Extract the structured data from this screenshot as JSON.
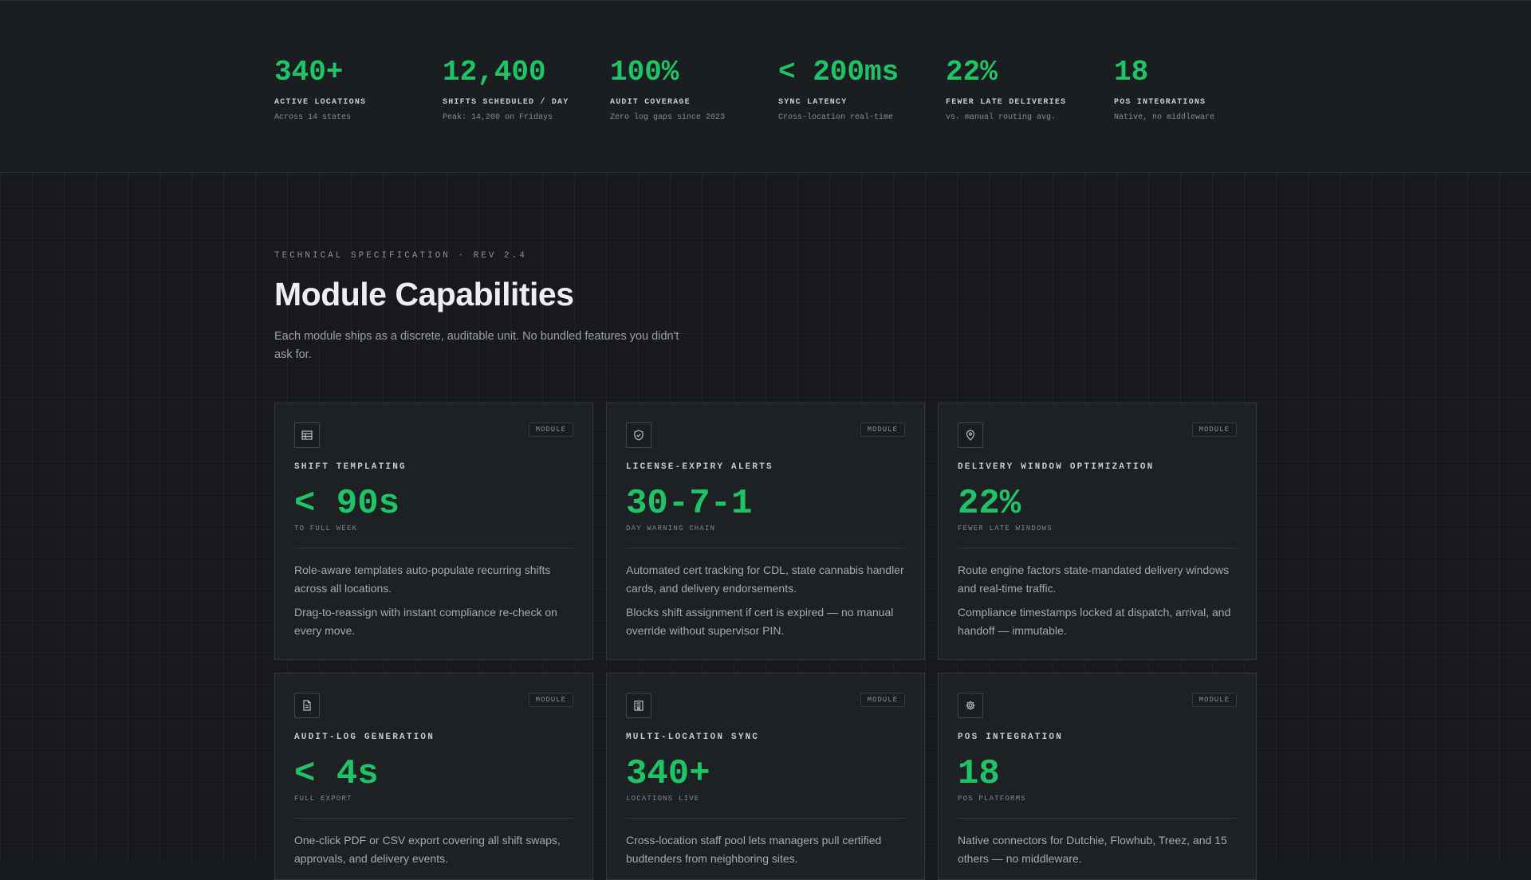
{
  "stats": [
    {
      "value": "340+",
      "label": "ACTIVE LOCATIONS",
      "sub": "Across 14 states"
    },
    {
      "value": "12,400",
      "label": "SHIFTS SCHEDULED / DAY",
      "sub": "Peak: 14,200 on Fridays"
    },
    {
      "value": "100%",
      "label": "AUDIT COVERAGE",
      "sub": "Zero log gaps since 2023"
    },
    {
      "value": "< 200ms",
      "label": "SYNC LATENCY",
      "sub": "Cross-location real-time"
    },
    {
      "value": "22%",
      "label": "FEWER LATE DELIVERIES",
      "sub": "vs. manual routing avg."
    },
    {
      "value": "18",
      "label": "POS INTEGRATIONS",
      "sub": "Native, no middleware"
    }
  ],
  "section": {
    "eyebrow": "TECHNICAL SPECIFICATION · REV 2.4",
    "title": "Module Capabilities",
    "lead": "Each module ships as a discrete, auditable unit. No bundled features you didn't ask for."
  },
  "modules": [
    {
      "icon": "calendar-table-icon",
      "tag": "MODULE",
      "name": "SHIFT TEMPLATING",
      "metric": "< 90s",
      "metric_unit": "TO FULL WEEK",
      "body1": "Role-aware templates auto-populate recurring shifts across all locations.",
      "body2": "Drag-to-reassign with instant compliance re-check on every move."
    },
    {
      "icon": "shield-check-icon",
      "tag": "MODULE",
      "name": "LICENSE-EXPIRY ALERTS",
      "metric": "30-7-1",
      "metric_unit": "DAY WARNING CHAIN",
      "body1": "Automated cert tracking for CDL, state cannabis handler cards, and delivery endorsements.",
      "body2": "Blocks shift assignment if cert is expired — no manual override without supervisor PIN."
    },
    {
      "icon": "map-pin-icon",
      "tag": "MODULE",
      "name": "DELIVERY WINDOW OPTIMIZATION",
      "metric": "22%",
      "metric_unit": "FEWER LATE WINDOWS",
      "body1": "Route engine factors state-mandated delivery windows and real-time traffic.",
      "body2": "Compliance timestamps locked at dispatch, arrival, and handoff — immutable."
    },
    {
      "icon": "document-icon",
      "tag": "MODULE",
      "name": "AUDIT-LOG GENERATION",
      "metric": "< 4s",
      "metric_unit": "FULL EXPORT",
      "body1": "One-click PDF or CSV export covering all shift swaps, approvals, and delivery events.",
      "body2": ""
    },
    {
      "icon": "building-icon",
      "tag": "MODULE",
      "name": "MULTI-LOCATION SYNC",
      "metric": "340+",
      "metric_unit": "LOCATIONS LIVE",
      "body1": "Cross-location staff pool lets managers pull certified budtenders from neighboring sites.",
      "body2": ""
    },
    {
      "icon": "gear-icon",
      "tag": "MODULE",
      "name": "POS INTEGRATION",
      "metric": "18",
      "metric_unit": "POS PLATFORMS",
      "body1": "Native connectors for Dutchie, Flowhub, Treez, and 15 others — no middleware.",
      "body2": ""
    }
  ],
  "colors": {
    "accent": "#1fc467",
    "background": "#17191c",
    "card": "#1e2124"
  }
}
